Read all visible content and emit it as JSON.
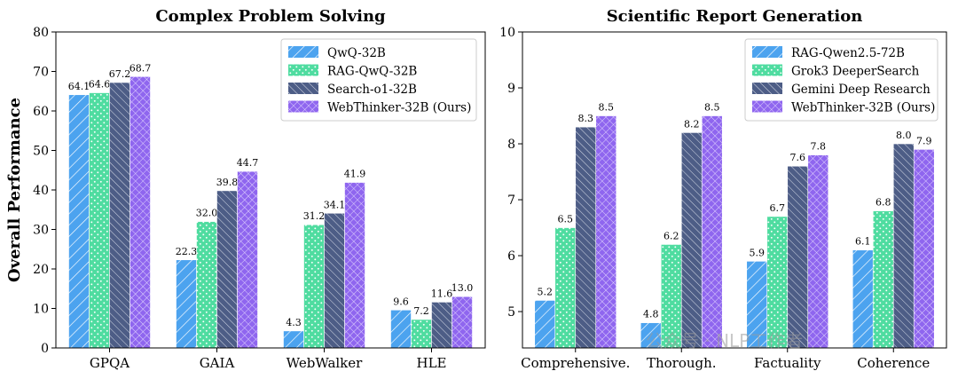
{
  "ylabel": "Overall Performance",
  "watermark": "公众号 · NLP工作者",
  "colors": {
    "s0": "#4ca3ef",
    "s1": "#4fdca0",
    "s2": "#4d5d86",
    "s3": "#8f66ef"
  },
  "chart_data": [
    {
      "type": "bar",
      "title": "Complex Problem Solving",
      "xlabel": "",
      "ylabel": "Overall Performance",
      "ylim": [
        0,
        80
      ],
      "yticks": [
        0,
        10,
        20,
        30,
        40,
        50,
        60,
        70,
        80
      ],
      "legend_position": "top-right",
      "categories": [
        "GPQA",
        "GAIA",
        "WebWalker",
        "HLE"
      ],
      "series": [
        {
          "name": "QwQ-32B",
          "values": [
            64.1,
            22.3,
            4.3,
            9.6
          ],
          "pattern": "diag"
        },
        {
          "name": "RAG-QwQ-32B",
          "values": [
            64.6,
            32.0,
            31.2,
            7.2
          ],
          "pattern": "dots"
        },
        {
          "name": "Search-o1-32B",
          "values": [
            67.2,
            39.8,
            34.1,
            11.6
          ],
          "pattern": "backdiag"
        },
        {
          "name": "WebThinker-32B (Ours)",
          "values": [
            68.7,
            44.7,
            41.9,
            13.0
          ],
          "pattern": "cross"
        }
      ]
    },
    {
      "type": "bar",
      "title": "Scientific Report Generation",
      "xlabel": "",
      "ylabel": "",
      "ylim": [
        4.35,
        10
      ],
      "yticks": [
        5,
        6,
        7,
        8,
        9,
        10
      ],
      "legend_position": "top-right",
      "categories": [
        "Comprehensive.",
        "Thorough.",
        "Factuality",
        "Coherence"
      ],
      "series": [
        {
          "name": "RAG-Qwen2.5-72B",
          "values": [
            5.2,
            4.8,
            5.9,
            6.1
          ],
          "pattern": "diag"
        },
        {
          "name": "Grok3 DeeperSearch",
          "values": [
            6.5,
            6.2,
            6.7,
            6.8
          ],
          "pattern": "dots"
        },
        {
          "name": "Gemini Deep Research",
          "values": [
            8.3,
            8.2,
            7.6,
            8.0
          ],
          "pattern": "backdiag"
        },
        {
          "name": "WebThinker-32B (Ours)",
          "values": [
            8.5,
            8.5,
            7.8,
            7.9
          ],
          "pattern": "cross"
        }
      ]
    }
  ]
}
